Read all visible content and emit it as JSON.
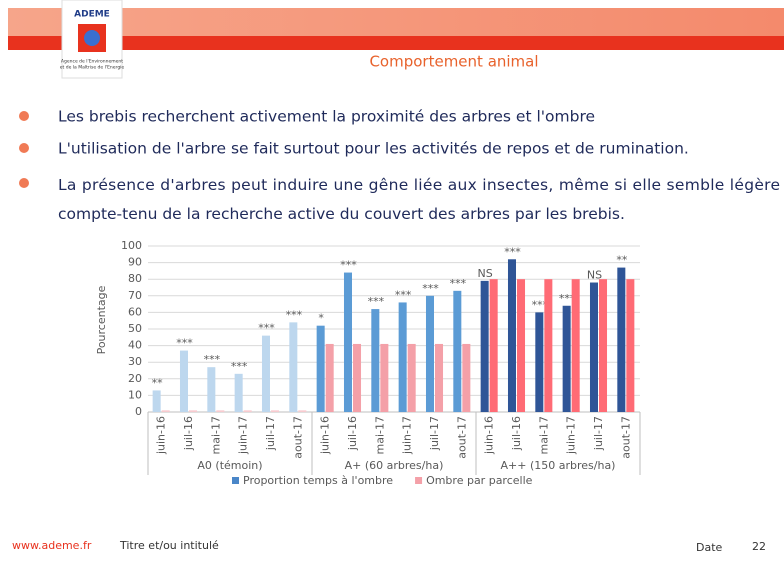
{
  "header": {
    "logo": {
      "name": "ADEME",
      "tagline": [
        "Agence de l'Environnement",
        "et de la Maîtrise de l'Energie"
      ]
    },
    "title": "Comportement animal"
  },
  "bullets": [
    "Les brebis recherchent activement la proximité des arbres et l'ombre",
    "L'utilisation de l'arbre se fait surtout pour les activités de repos et de rumination.",
    "La présence d'arbres peut induire une gêne liée aux insectes, même si elle semble légère compte-tenu de la recherche active du couvert des arbres par les brebis."
  ],
  "chart_data": {
    "type": "bar",
    "y_label": "Pourcentage",
    "groups": [
      "A0 (témoin)",
      "A+ (60 arbres/ha)",
      "A++ (150 arbres/ha)"
    ],
    "categories": [
      "juin-16",
      "juil-16",
      "mai-17",
      "juin-17",
      "juil-17",
      "aout-17",
      "juin-16",
      "juil-16",
      "mai-17",
      "juin-17",
      "juil-17",
      "aout-17",
      "juin-16",
      "juil-16",
      "mai-17",
      "juin-17",
      "juil-17",
      "aout-17"
    ],
    "series": [
      {
        "name": "Proportion temps à l'ombre",
        "color": "#4a86c8",
        "group_colors": [
          "#bdd7ee",
          "#5b9bd5",
          "#2f5597"
        ],
        "values": [
          13,
          37,
          27,
          23,
          46,
          54,
          52,
          84,
          62,
          66,
          70,
          73,
          79,
          92,
          60,
          64,
          78,
          87
        ],
        "annotations": [
          "**",
          "***",
          "***",
          "***",
          "***",
          "***",
          "*",
          "***",
          "***",
          "***",
          "***",
          "***",
          "NS",
          "***",
          "***",
          "***",
          "NS",
          "**"
        ]
      },
      {
        "name": "Ombre par parcelle",
        "color": "#f4a0a8",
        "group_colors": [
          "#f8cbcf",
          "#f4a0a8",
          "#ff6b75"
        ],
        "values": [
          1,
          1,
          1,
          1,
          1,
          1,
          41,
          41,
          41,
          41,
          41,
          41,
          80,
          80,
          80,
          80,
          80,
          80
        ]
      }
    ],
    "ylim": [
      0,
      100
    ],
    "yticks": [
      0,
      10,
      20,
      30,
      40,
      50,
      60,
      70,
      80,
      90,
      100
    ],
    "grid": true,
    "legend": "bottom"
  },
  "footer": {
    "site": "www.ademe.fr",
    "subtitle": "Titre et/ou intitulé",
    "date": "Date",
    "page": "22"
  }
}
